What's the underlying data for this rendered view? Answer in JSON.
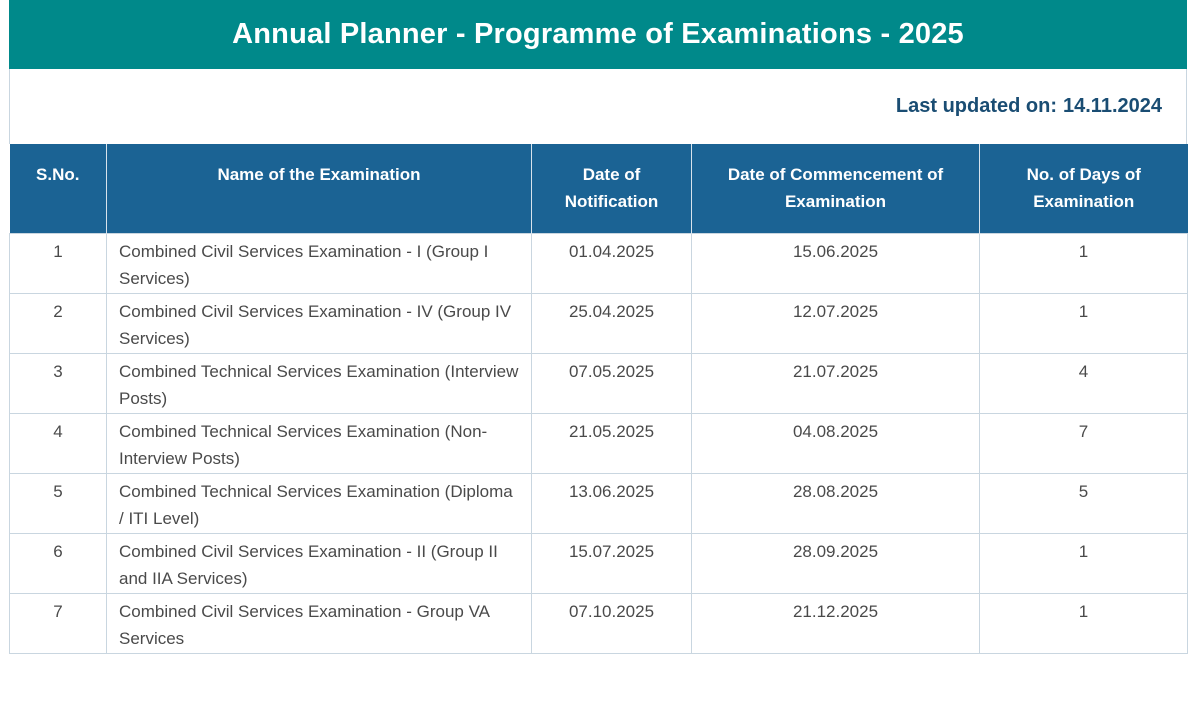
{
  "page": {
    "title": "Annual Planner - Programme of Examinations - 2025",
    "last_updated_label": "Last updated on:",
    "last_updated_value": "14.11.2024"
  },
  "table": {
    "headers": [
      "S.No.",
      "Name of the Examination",
      "Date of Notification",
      "Date of Commencement of Examination",
      "No. of Days of Examination"
    ],
    "rows": [
      {
        "sno": "1",
        "name": "Combined Civil Services Examination - I (Group I Services)",
        "notification": "01.04.2025",
        "commencement": "15.06.2025",
        "days": "1"
      },
      {
        "sno": "2",
        "name": "Combined Civil Services Examination - IV (Group IV Services)",
        "notification": "25.04.2025",
        "commencement": "12.07.2025",
        "days": "1"
      },
      {
        "sno": "3",
        "name": "Combined Technical Services Examination (Interview Posts)",
        "notification": "07.05.2025",
        "commencement": "21.07.2025",
        "days": "4"
      },
      {
        "sno": "4",
        "name": "Combined Technical Services Examination (Non-Interview Posts)",
        "notification": "21.05.2025",
        "commencement": "04.08.2025",
        "days": "7"
      },
      {
        "sno": "5",
        "name": "Combined Technical Services Examination (Diploma / ITI Level)",
        "notification": "13.06.2025",
        "commencement": "28.08.2025",
        "days": "5"
      },
      {
        "sno": "6",
        "name": "Combined Civil Services Examination - II (Group II and IIA Services)",
        "notification": "15.07.2025",
        "commencement": "28.09.2025",
        "days": "1"
      },
      {
        "sno": "7",
        "name": "Combined Civil Services Examination - Group VA Services",
        "notification": "07.10.2025",
        "commencement": "21.12.2025",
        "days": "1"
      }
    ]
  },
  "colors": {
    "title_bg": "#00898a",
    "header_bg": "#1b6394",
    "updated_text": "#1a4d73"
  }
}
